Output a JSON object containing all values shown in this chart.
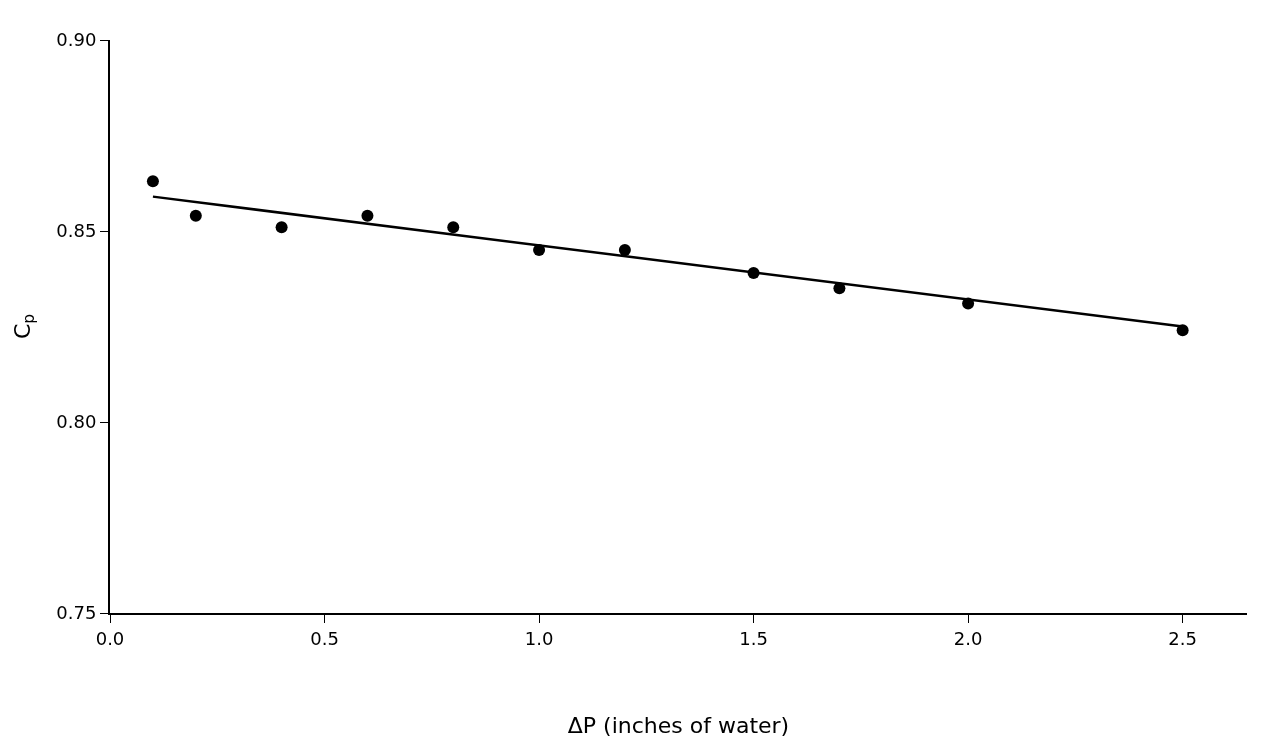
{
  "chart_data": {
    "type": "scatter",
    "xlabel": "ΔP (inches of water)",
    "ylabel": "C$_{p}$",
    "xlim": [
      0,
      2.65
    ],
    "ylim": [
      0.75,
      0.9
    ],
    "xticks": [
      {
        "value": 0,
        "label": "0.0"
      },
      0.5,
      {
        "value": 1,
        "label": "1.0"
      },
      1.5,
      {
        "value": 2,
        "label": "2.0"
      },
      2.5
    ],
    "yticks": [
      0.75,
      {
        "value": 0.8,
        "label": "0.80"
      },
      0.85,
      {
        "value": 0.9,
        "label": "0.90"
      }
    ],
    "series": [
      {
        "color": "#000000",
        "marker": "circle",
        "x": [
          0.1,
          0.2,
          0.4,
          0.6,
          0.8,
          1.0,
          1.2,
          1.5,
          1.7,
          2.0,
          2.5
        ],
        "values": [
          0.863,
          0.854,
          0.851,
          0.854,
          0.851,
          0.845,
          0.845,
          0.839,
          0.835,
          0.831,
          0.824
        ]
      },
      {
        "type": "line",
        "color": "#000000",
        "marker": "none",
        "line_style": "solid",
        "x": [
          0.1,
          2.5
        ],
        "values": [
          0.859,
          0.825
        ]
      }
    ]
  }
}
